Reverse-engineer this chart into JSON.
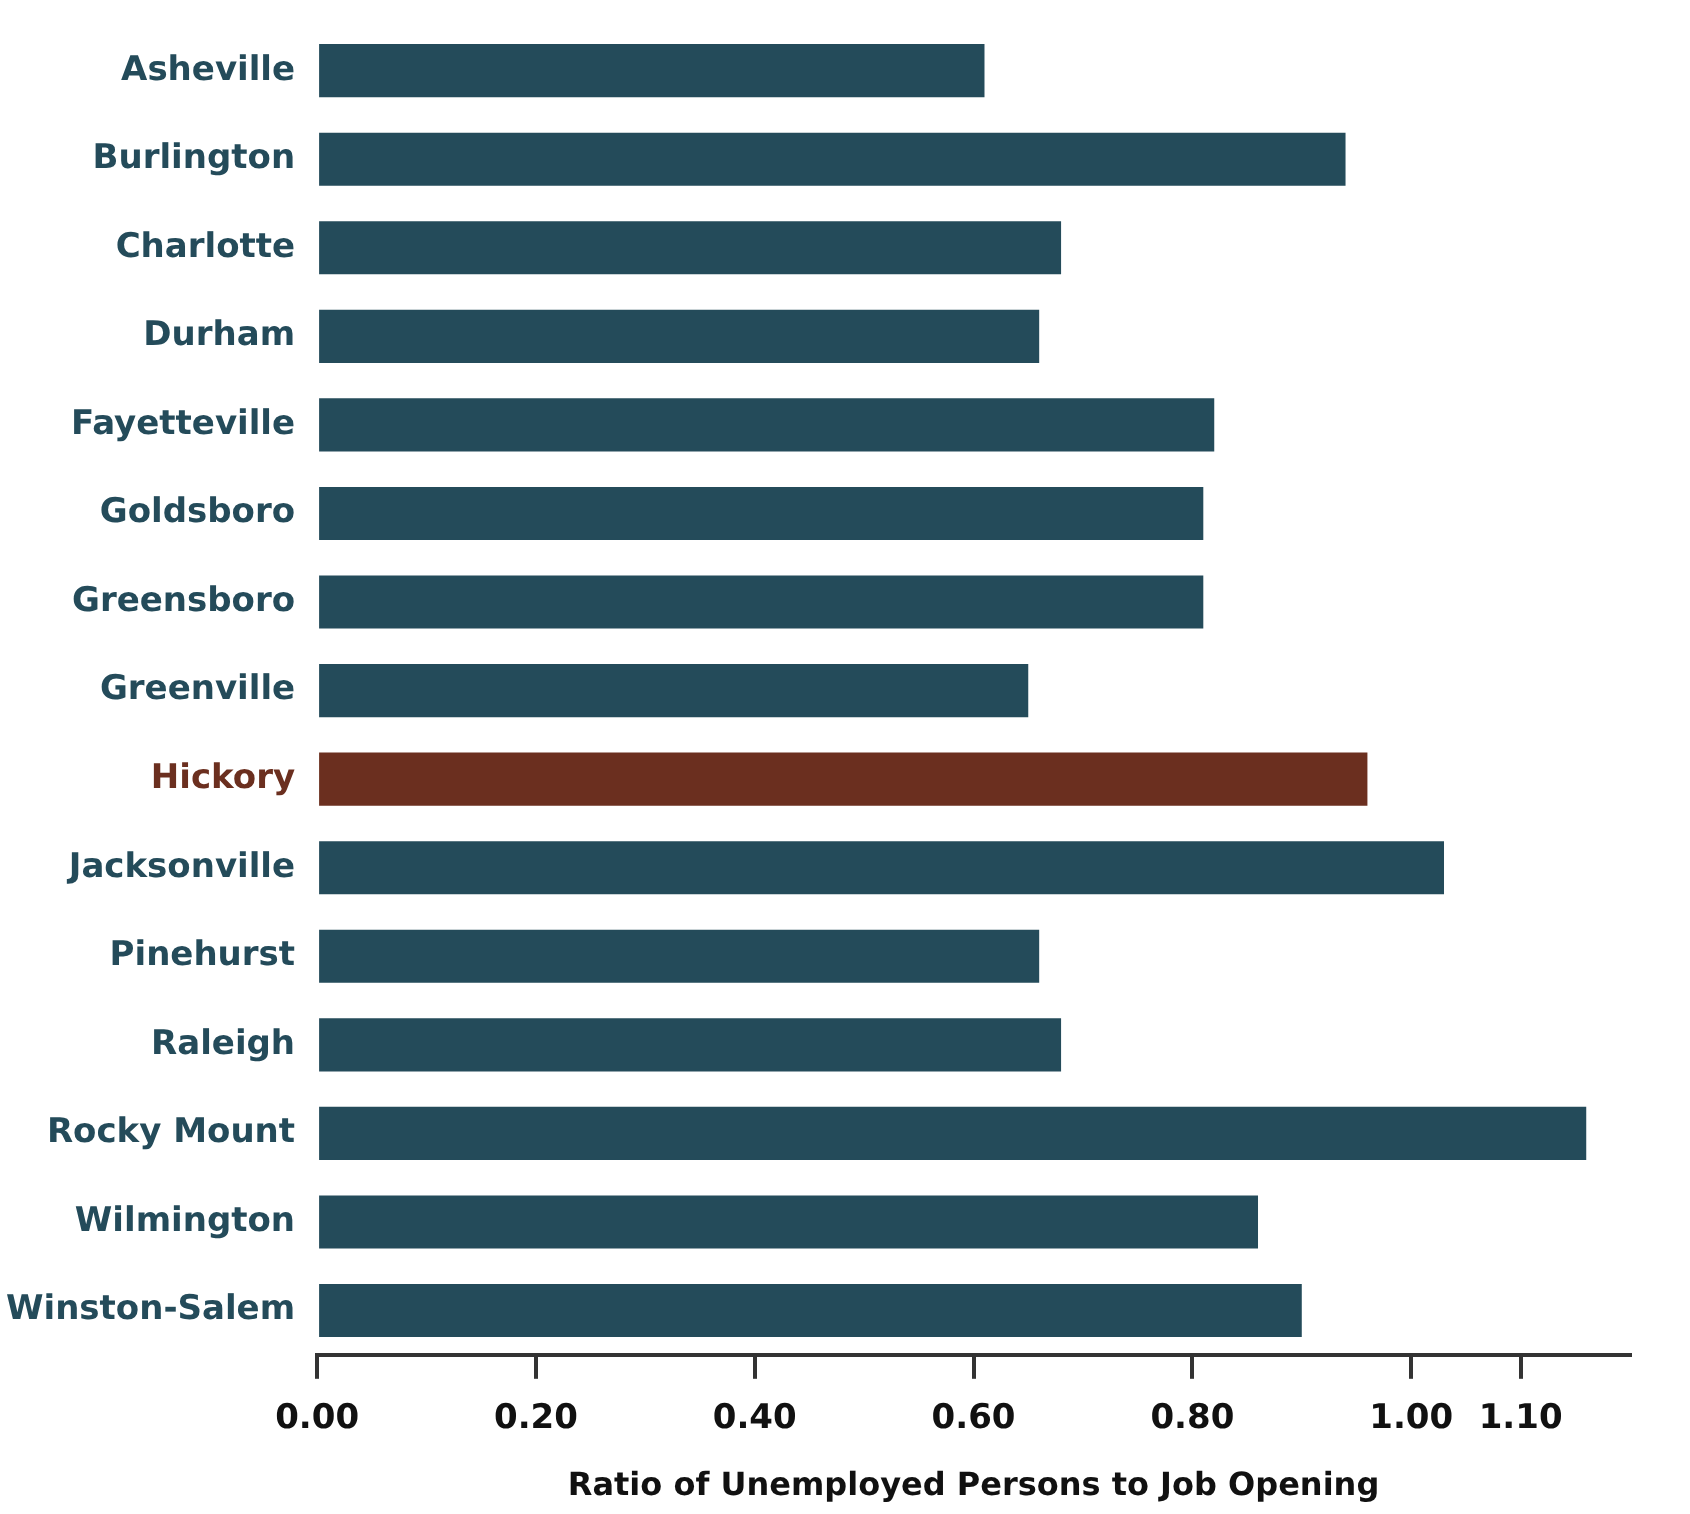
{
  "chart_data": {
    "type": "bar",
    "orientation": "horizontal",
    "xlabel": "Ratio of Unemployed Persons to Job Opening",
    "categories": [
      "Asheville",
      "Burlington",
      "Charlotte",
      "Durham",
      "Fayetteville",
      "Goldsboro",
      "Greensboro",
      "Greenville",
      "Hickory",
      "Jacksonville",
      "Pinehurst",
      "Raleigh",
      "Rocky Mount",
      "Wilmington",
      "Winston-Salem"
    ],
    "values": [
      0.61,
      0.94,
      0.68,
      0.66,
      0.82,
      0.81,
      0.81,
      0.65,
      0.96,
      1.03,
      0.66,
      0.68,
      1.16,
      0.86,
      0.9
    ],
    "colors": [
      "#244b5a",
      "#244b5a",
      "#244b5a",
      "#244b5a",
      "#244b5a",
      "#244b5a",
      "#244b5a",
      "#244b5a",
      "#6b2f1f",
      "#244b5a",
      "#244b5a",
      "#244b5a",
      "#244b5a",
      "#244b5a",
      "#244b5a"
    ],
    "xlim": [
      0,
      1.2
    ],
    "xticks": [
      {
        "value": 0,
        "label": "0.00"
      },
      {
        "value": 0.2,
        "label": "0.20"
      },
      {
        "value": 0.4,
        "label": "0.40"
      },
      {
        "value": 0.6,
        "label": "0.60"
      },
      {
        "value": 0.8,
        "label": "0.80"
      },
      {
        "value": 1.0,
        "label": "1.00"
      },
      {
        "value": 1.1,
        "label": "1.10"
      }
    ],
    "grid": false,
    "legend": false
  }
}
